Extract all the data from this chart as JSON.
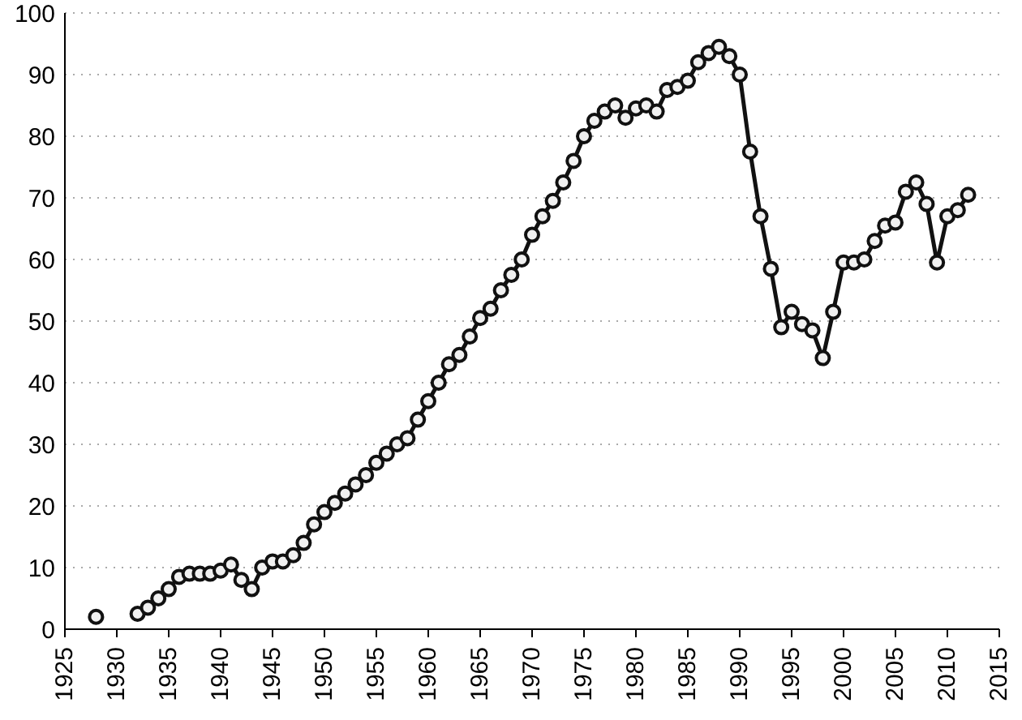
{
  "chart_data": {
    "type": "line",
    "x": [
      1928,
      1929,
      1930,
      1931,
      1932,
      1933,
      1934,
      1935,
      1936,
      1937,
      1938,
      1939,
      1940,
      1941,
      1942,
      1943,
      1944,
      1945,
      1946,
      1947,
      1948,
      1949,
      1950,
      1951,
      1952,
      1953,
      1954,
      1955,
      1956,
      1957,
      1958,
      1959,
      1960,
      1961,
      1962,
      1963,
      1964,
      1965,
      1966,
      1967,
      1968,
      1969,
      1970,
      1971,
      1972,
      1973,
      1974,
      1975,
      1976,
      1977,
      1978,
      1979,
      1980,
      1981,
      1982,
      1983,
      1984,
      1985,
      1986,
      1987,
      1988,
      1989,
      1990,
      1991,
      1992,
      1993,
      1994,
      1995,
      1996,
      1997,
      1998,
      1999,
      2000,
      2001,
      2002,
      2003,
      2004,
      2005,
      2006,
      2007,
      2008,
      2009,
      2010,
      2011,
      2012
    ],
    "series": [
      {
        "color": "#111111",
        "values": [
          2,
          null,
          null,
          null,
          2.5,
          3.5,
          5,
          6.5,
          8.5,
          9,
          9,
          9,
          9.5,
          10.5,
          8,
          6.5,
          10,
          11,
          11,
          12,
          14,
          17,
          19,
          20.5,
          22,
          23.5,
          25,
          27,
          28.5,
          30,
          31,
          34,
          37,
          40,
          43,
          44.5,
          47.5,
          50.5,
          52,
          55,
          57.5,
          60,
          64,
          67,
          69.5,
          72.5,
          76,
          80,
          82.5,
          84,
          85,
          83,
          84.5,
          85,
          84,
          87.5,
          88,
          89,
          92,
          93.5,
          94.5,
          93,
          90,
          77.5,
          67,
          58.5,
          49,
          51.5,
          49.5,
          48.5,
          44,
          51.5,
          59.5,
          59.5,
          60,
          63,
          65.5,
          66,
          71,
          72.5,
          69,
          59.5,
          67,
          68,
          70.5
        ]
      }
    ],
    "xlim": [
      1925,
      2015
    ],
    "xticks": [
      1925,
      1930,
      1935,
      1940,
      1945,
      1950,
      1955,
      1960,
      1965,
      1970,
      1975,
      1980,
      1985,
      1990,
      1995,
      2000,
      2005,
      2010,
      2015
    ],
    "ylim": [
      0,
      100
    ],
    "yticks": [
      0,
      10,
      20,
      30,
      40,
      50,
      60,
      70,
      80,
      90,
      100
    ],
    "grid": "y",
    "marker": "circle",
    "line_style": "solid",
    "legend": false
  }
}
